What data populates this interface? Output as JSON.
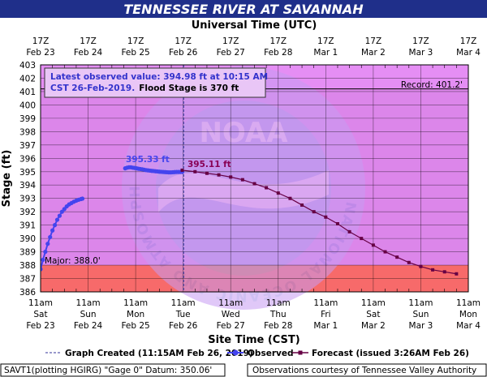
{
  "colors": {
    "title_bar": "#1f2f8a",
    "plot_bg": "#e58ef4",
    "major_band": "#cc77d6",
    "flood_band": "#f76a6a",
    "observed": "#4444ee",
    "forecast": "#660044",
    "grid": "#000000",
    "watermark": "#b9b9ee"
  },
  "chart_data": {
    "type": "line",
    "title": "TENNESSEE RIVER AT SAVANNAH",
    "top_axis_title": "Universal Time (UTC)",
    "xlabel": "Site Time (CST)",
    "ylabel": "Stage (ft)",
    "ylim": [
      386,
      403
    ],
    "y_ticks": [
      386,
      387,
      388,
      389,
      390,
      391,
      392,
      393,
      394,
      395,
      396,
      397,
      398,
      399,
      400,
      401,
      402,
      403
    ],
    "x_range_days": [
      "Feb 23",
      "Mar 4"
    ],
    "top_ticks": [
      {
        "time": "17Z",
        "date": "Feb 23"
      },
      {
        "time": "17Z",
        "date": "Feb 24"
      },
      {
        "time": "17Z",
        "date": "Feb 25"
      },
      {
        "time": "17Z",
        "date": "Feb 26"
      },
      {
        "time": "17Z",
        "date": "Feb 27"
      },
      {
        "time": "17Z",
        "date": "Feb 28"
      },
      {
        "time": "17Z",
        "date": "Mar 1"
      },
      {
        "time": "17Z",
        "date": "Mar 2"
      },
      {
        "time": "17Z",
        "date": "Mar 3"
      },
      {
        "time": "17Z",
        "date": "Mar 4"
      }
    ],
    "bottom_ticks": [
      {
        "time": "11am",
        "day": "Sat",
        "date": "Feb 23"
      },
      {
        "time": "11am",
        "day": "Sun",
        "date": "Feb 24"
      },
      {
        "time": "11am",
        "day": "Mon",
        "date": "Feb 25"
      },
      {
        "time": "11am",
        "day": "Tue",
        "date": "Feb 26"
      },
      {
        "time": "11am",
        "day": "Wed",
        "date": "Feb 27"
      },
      {
        "time": "11am",
        "day": "Thu",
        "date": "Feb 28"
      },
      {
        "time": "11am",
        "day": "Fri",
        "date": "Mar 1"
      },
      {
        "time": "11am",
        "day": "Sat",
        "date": "Mar 2"
      },
      {
        "time": "11am",
        "day": "Sun",
        "date": "Mar 3"
      },
      {
        "time": "11am",
        "day": "Mon",
        "date": "Mar 4"
      }
    ],
    "bands": [
      {
        "name": "flood",
        "from": 386,
        "to": 388
      },
      {
        "name": "major",
        "from": 388,
        "to": 401.2
      }
    ],
    "record_label": "Record: 401.2'",
    "record_value": 401.2,
    "major_label": "Major: 388.0'",
    "latest_text_line1": "Latest observed value: 394.98 ft at 10:15 AM",
    "latest_text_line2": "CST 26-Feb-2019.",
    "flood_stage_text": "Flood Stage is 370 ft",
    "peak_label": "395.33 ft",
    "forecast_label": "395.11 ft",
    "created_x": 3.01,
    "series": [
      {
        "name": "Observed",
        "style": "observed",
        "x": [
          0.0,
          0.05,
          0.1,
          0.15,
          0.2,
          0.25,
          0.3,
          0.35,
          0.4,
          0.45,
          0.5,
          0.55,
          0.6,
          0.65,
          0.7,
          0.75,
          0.8,
          0.85,
          0.88,
          1.78,
          1.82,
          1.86,
          1.9,
          1.94,
          1.98,
          2.02,
          2.06,
          2.1,
          2.14,
          2.18,
          2.22,
          2.26,
          2.3,
          2.34,
          2.38,
          2.42,
          2.46,
          2.5,
          2.54,
          2.58,
          2.62,
          2.66,
          2.7,
          2.74,
          2.78,
          2.82,
          2.86,
          2.9,
          2.94,
          2.98
        ],
        "y": [
          387.7,
          388.4,
          389.0,
          389.6,
          390.1,
          390.6,
          391.0,
          391.4,
          391.7,
          392.0,
          392.2,
          392.4,
          392.55,
          392.65,
          392.75,
          392.83,
          392.9,
          392.95,
          392.98,
          395.25,
          395.3,
          395.33,
          395.33,
          395.3,
          395.28,
          395.25,
          395.22,
          395.2,
          395.18,
          395.15,
          395.12,
          395.1,
          395.08,
          395.06,
          395.05,
          395.03,
          395.02,
          395.0,
          394.99,
          394.98,
          394.97,
          394.96,
          394.95,
          394.95,
          394.96,
          394.97,
          394.98,
          394.98,
          394.98,
          394.98
        ]
      },
      {
        "name": "Forecast",
        "style": "forecast",
        "x": [
          2.98,
          3.25,
          3.5,
          3.75,
          4.0,
          4.25,
          4.5,
          4.75,
          5.0,
          5.25,
          5.5,
          5.75,
          6.0,
          6.25,
          6.5,
          6.75,
          7.0,
          7.25,
          7.5,
          7.75,
          8.0,
          8.25,
          8.5,
          8.75
        ],
        "y": [
          395.11,
          395.0,
          394.88,
          394.76,
          394.6,
          394.4,
          394.1,
          393.8,
          393.4,
          393.0,
          392.5,
          392.0,
          391.6,
          391.1,
          390.5,
          390.0,
          389.5,
          389.0,
          388.6,
          388.2,
          387.9,
          387.65,
          387.5,
          387.35
        ]
      }
    ],
    "legend": {
      "created": "Graph Created (11:15AM Feb 26, 2019)",
      "observed": "Observed",
      "forecast": "Forecast (issued 3:26AM Feb 26)"
    }
  },
  "footer": {
    "left": "SAVT1(plotting HGIRG) \"Gage 0\" Datum: 350.06'",
    "right": "Observations courtesy of Tennessee Valley Authority"
  },
  "watermark": {
    "logo_text": "NOAA",
    "ring_text": "NATIONAL OCEANIC AND ATMOSPHERIC ADMINISTRATION · U.S. DEPARTMENT OF COMMERCE"
  }
}
